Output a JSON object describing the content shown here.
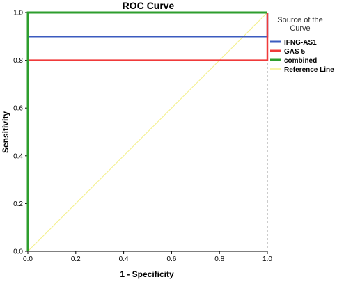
{
  "chart_data": {
    "type": "line",
    "title": "ROC Curve",
    "xlabel": "1 - Specificity",
    "ylabel": "Sensitivity",
    "xlim": [
      0,
      1
    ],
    "ylim": [
      0,
      1
    ],
    "x_ticks": [
      "0.0",
      "0.2",
      "0.4",
      "0.6",
      "0.8",
      "1.0"
    ],
    "y_ticks": [
      "0.0",
      "0.2",
      "0.4",
      "0.6",
      "0.8",
      "1.0"
    ],
    "grid": false,
    "legend": {
      "title": "Source of the Curve",
      "position": "right"
    },
    "series": [
      {
        "name": "IFNG-AS1",
        "color": "#3b5bbf",
        "points": [
          [
            0,
            0
          ],
          [
            0,
            0.9
          ],
          [
            1,
            0.9
          ],
          [
            1,
            1
          ]
        ]
      },
      {
        "name": "GAS 5",
        "color": "#f03a3a",
        "points": [
          [
            0,
            0
          ],
          [
            0,
            0.8
          ],
          [
            1,
            0.8
          ],
          [
            1,
            1
          ]
        ]
      },
      {
        "name": "combined",
        "color": "#2e9e2e",
        "points": [
          [
            0,
            0
          ],
          [
            0,
            1
          ],
          [
            1,
            1
          ]
        ]
      },
      {
        "name": "Reference Line",
        "color": "#f4f08a",
        "points": [
          [
            0,
            0
          ],
          [
            1,
            1
          ]
        ]
      }
    ]
  }
}
